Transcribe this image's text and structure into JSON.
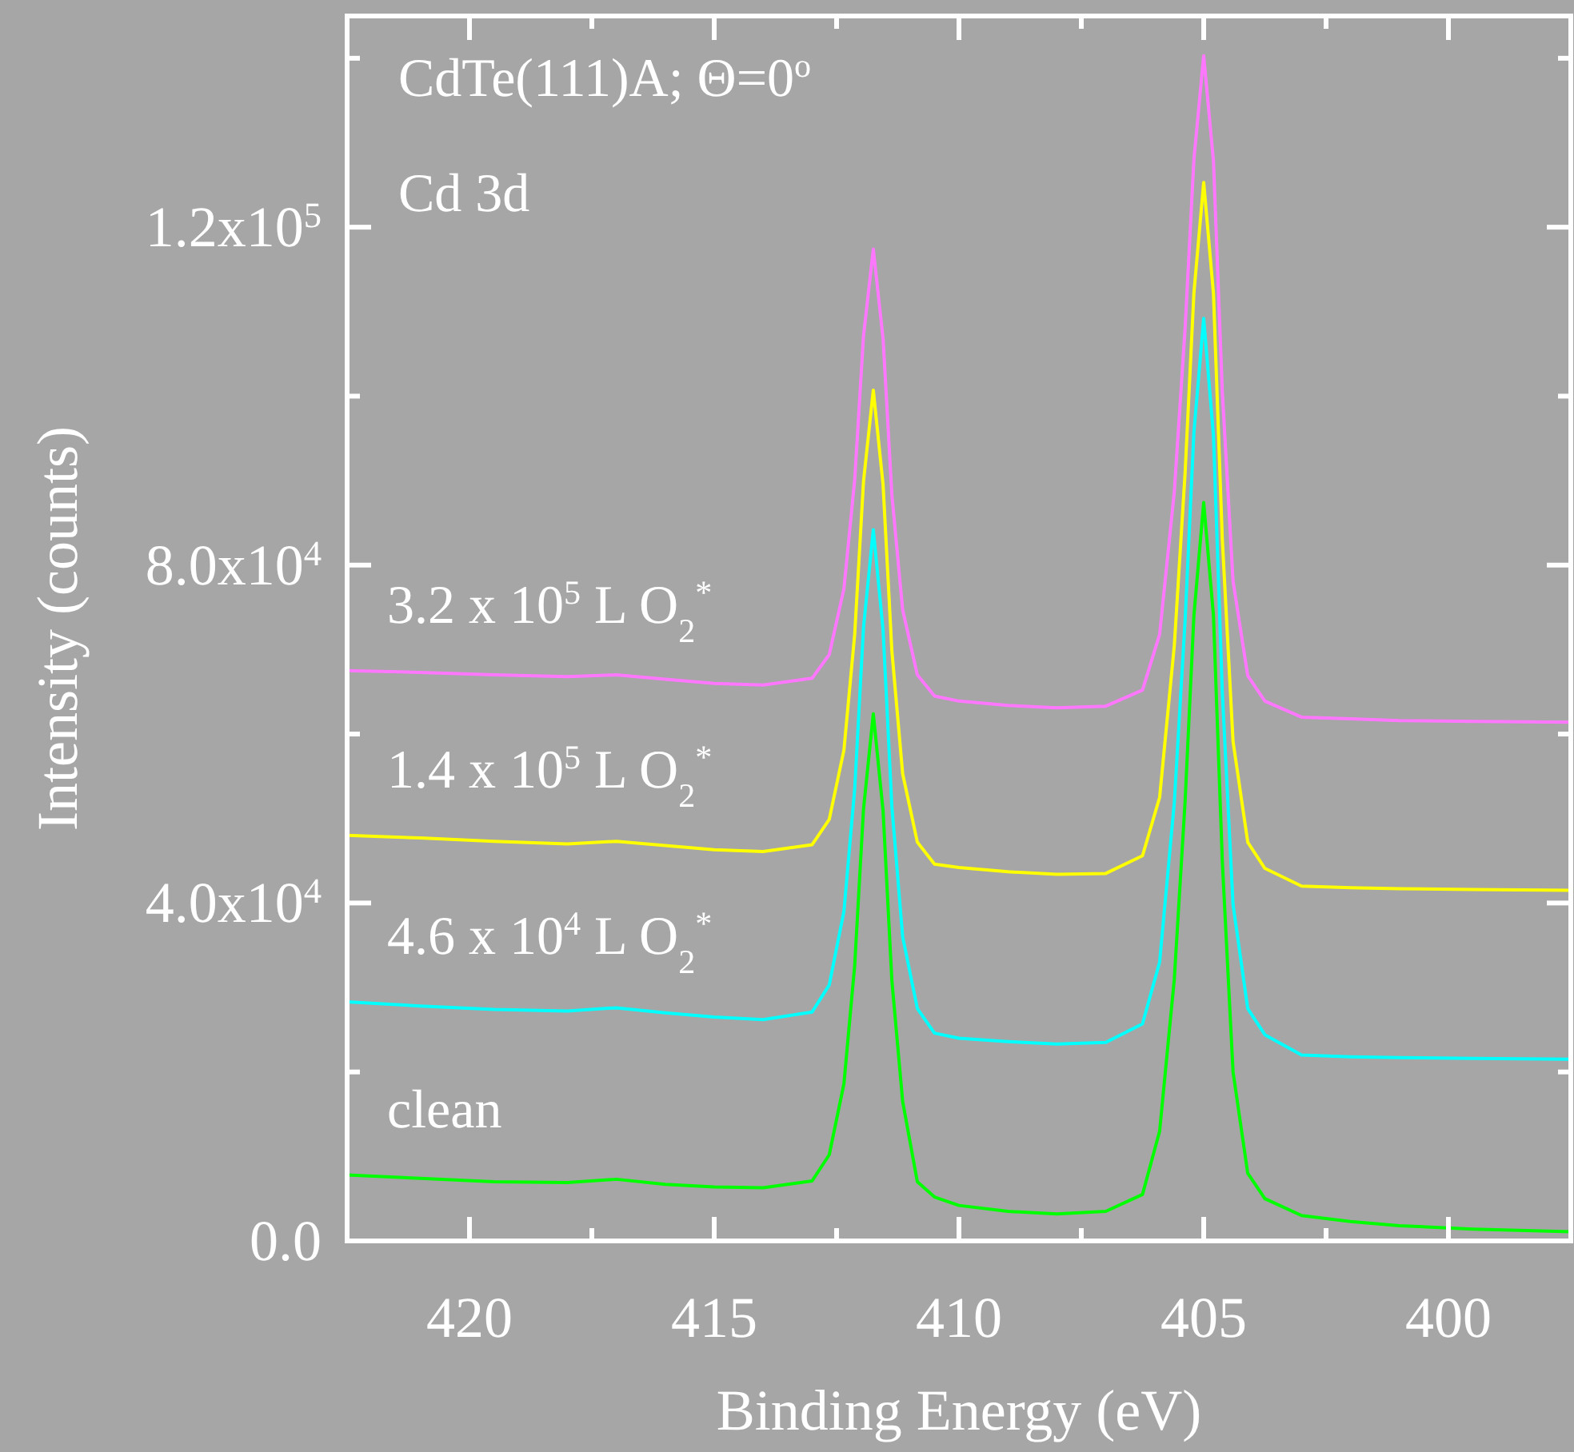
{
  "chart_data": {
    "type": "line",
    "xlabel": "Binding Energy (eV)",
    "ylabel": "Intensity (counts)",
    "annotations": [
      "CdTe(111)A; Θ=0$^{o}$",
      "Cd 3d"
    ],
    "x": [
      422.5,
      421,
      419.5,
      418,
      417,
      416,
      415,
      414,
      413,
      412.65,
      412.35,
      412.13,
      411.95,
      411.75,
      411.55,
      411.37,
      411.15,
      410.85,
      410.5,
      410,
      409,
      408,
      407,
      406.25,
      405.9,
      405.6,
      405.38,
      405.2,
      405,
      404.8,
      404.62,
      404.4,
      404.1,
      403.75,
      403,
      402,
      401,
      399.5,
      397.5
    ],
    "series": [
      {
        "name": "3.2 x 10$^{5}$ L O$_{2}$$^{*}$",
        "color": "#ff77ff",
        "values": [
          67500,
          67300,
          67000,
          66800,
          67000,
          66500,
          66000,
          65800,
          66600,
          69400,
          77200,
          90100,
          107100,
          117400,
          106800,
          88300,
          74700,
          67000,
          64500,
          63900,
          63400,
          63100,
          63300,
          65200,
          71800,
          88700,
          108000,
          128000,
          140300,
          127800,
          100600,
          78100,
          66900,
          63900,
          62000,
          61800,
          61600,
          61500,
          61400
        ]
      },
      {
        "name": "1.4 x 10$^{5}$ L O$_{2}$$^{*}$",
        "color": "#ffff00",
        "values": [
          48000,
          47700,
          47300,
          47000,
          47300,
          46800,
          46300,
          46100,
          46900,
          49900,
          58100,
          71800,
          89900,
          100700,
          89500,
          69800,
          55300,
          47200,
          44600,
          44200,
          43700,
          43400,
          43500,
          45600,
          52500,
          70500,
          90900,
          112200,
          125300,
          112100,
          83100,
          59100,
          47200,
          44100,
          42000,
          41800,
          41700,
          41600,
          41500
        ]
      },
      {
        "name": "4.6 x 10$^{4}$ L O$_{2}$$^{*}$",
        "color": "#00ffff",
        "values": [
          28300,
          27800,
          27400,
          27200,
          27600,
          27000,
          26500,
          26200,
          27100,
          30300,
          39000,
          53500,
          72600,
          84200,
          72300,
          51400,
          36000,
          27500,
          24600,
          24000,
          23600,
          23300,
          23500,
          25700,
          33000,
          51900,
          73400,
          95700,
          109200,
          95300,
          65000,
          39800,
          27500,
          24400,
          22000,
          21800,
          21700,
          21600,
          21500
        ]
      },
      {
        "name": "clean",
        "color": "#00ff00",
        "values": [
          7800,
          7400,
          7000,
          6900,
          7300,
          6700,
          6400,
          6300,
          7100,
          10200,
          18600,
          32600,
          51100,
          62400,
          50900,
          30800,
          16500,
          7000,
          5200,
          4200,
          3500,
          3200,
          3500,
          5500,
          13000,
          31000,
          52000,
          74000,
          87400,
          74000,
          45000,
          20000,
          8000,
          5000,
          3000,
          2300,
          1800,
          1400,
          1100
        ]
      }
    ],
    "xlim": [
      422.5,
      397.5
    ],
    "xticks": [
      420,
      {
        "value": 417.5,
        "label": null
      },
      415,
      {
        "value": 412.5,
        "label": null
      },
      410,
      {
        "value": 407.5,
        "label": null
      },
      405,
      {
        "value": 402.5,
        "label": null
      },
      400
    ],
    "ylim": [
      0,
      145000
    ],
    "yticks": [
      {
        "value": 0,
        "label": "0.0"
      },
      {
        "value": 20000,
        "label": null
      },
      {
        "value": 40000,
        "label": "4.0x10$^{4}$"
      },
      {
        "value": 60000,
        "label": null
      },
      {
        "value": 80000,
        "label": "8.0x10$^{4}$"
      },
      {
        "value": 100000,
        "label": null
      },
      {
        "value": 120000,
        "label": "1.2x10$^{5}$"
      },
      {
        "value": 140000,
        "label": null
      }
    ],
    "grid": false,
    "marker": "none",
    "line_style": "solid"
  }
}
